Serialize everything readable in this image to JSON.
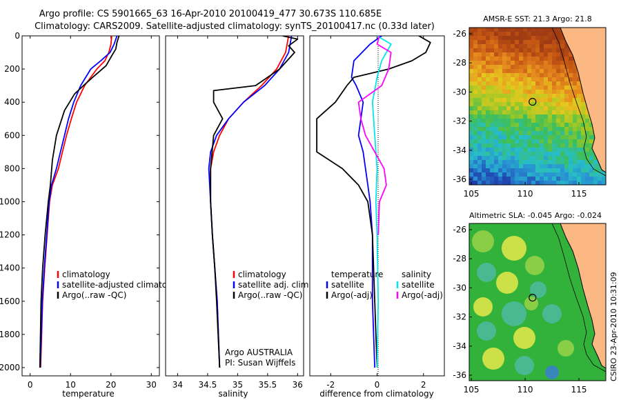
{
  "header": {
    "title_line1": "Argo profile: CS 5901665_63 16-Apr-2010 20100419_477 30.673S 110.685E",
    "title_line2": "Climatology: CARS2009. Satellite-adjusted climatology: synTS_20100417.nc (0.33d later)"
  },
  "colors": {
    "climatology": "#ff0000",
    "satellite": "#0000ff",
    "argo": "#000000",
    "salinity_satellite": "#00e5ee",
    "salinity_argo": "#ff00ff"
  },
  "chart_data": [
    {
      "type": "line",
      "xlabel": "temperature",
      "ylabel": "",
      "xlim": [
        -2,
        32
      ],
      "ylim": [
        2050,
        0
      ],
      "xticks": [
        0,
        10,
        20,
        30
      ],
      "yticks": [
        0,
        200,
        400,
        600,
        800,
        1000,
        1200,
        1400,
        1600,
        1800,
        2000
      ],
      "legend": {
        "placement": "lower-left",
        "entries": [
          "climatology",
          "satellite-adjusted climatology",
          "Argo(..raw -QC)"
        ]
      },
      "series": [
        {
          "name": "climatology",
          "color": "#ff0000",
          "x": [
            20.2,
            20.0,
            19.5,
            18.5,
            16.5,
            13.5,
            11.5,
            10.2,
            9.0,
            8.0,
            7.0,
            5.5,
            4.8,
            4.2,
            3.6,
            3.1,
            2.6
          ],
          "y": [
            0,
            50,
            100,
            150,
            200,
            300,
            400,
            500,
            600,
            700,
            800,
            900,
            1000,
            1200,
            1400,
            1600,
            2000
          ]
        },
        {
          "name": "satellite-adjusted climatology",
          "color": "#0000ff",
          "x": [
            21.5,
            20.8,
            19.8,
            17.5,
            15.0,
            12.5,
            10.8,
            9.5,
            8.5,
            7.5,
            6.5,
            5.3,
            4.7,
            4.1,
            3.5,
            3.0,
            2.5
          ],
          "y": [
            0,
            50,
            100,
            150,
            200,
            300,
            400,
            500,
            600,
            700,
            800,
            900,
            1000,
            1200,
            1400,
            1600,
            2000
          ]
        },
        {
          "name": "Argo(..raw -QC)",
          "color": "#000000",
          "x": [
            22.0,
            21.5,
            21.2,
            20.2,
            18.8,
            15.5,
            13.2,
            11.0,
            8.5,
            6.5,
            5.5,
            5.0,
            4.5,
            3.7,
            3.1,
            2.7,
            2.4
          ],
          "y": [
            0,
            40,
            80,
            120,
            180,
            250,
            300,
            350,
            450,
            600,
            750,
            900,
            1000,
            1200,
            1400,
            1600,
            2000
          ]
        }
      ]
    },
    {
      "type": "line",
      "xlabel": "salinity",
      "xlim": [
        33.8,
        36.1
      ],
      "ylim": [
        2050,
        0
      ],
      "xticks": [
        34,
        34.5,
        35,
        35.5,
        36
      ],
      "legend": {
        "placement": "lower-right",
        "entries": [
          "climatology",
          "satellite adj. clim.",
          "Argo(..raw -QC)"
        ]
      },
      "annotation_line1": "Argo AUSTRALIA",
      "annotation_line2": "PI: Susan Wijffels",
      "series": [
        {
          "name": "climatology",
          "color": "#ff0000",
          "x": [
            35.85,
            35.8,
            35.65,
            35.4,
            35.1,
            34.85,
            34.7,
            34.6,
            34.55,
            34.55,
            34.58,
            34.62,
            34.66,
            34.7
          ],
          "y": [
            0,
            100,
            200,
            300,
            400,
            500,
            600,
            700,
            800,
            1000,
            1200,
            1400,
            1600,
            2000
          ]
        },
        {
          "name": "satellite adj. clim.",
          "color": "#0000ff",
          "x": [
            35.9,
            35.85,
            35.7,
            35.45,
            35.1,
            34.85,
            34.65,
            34.55,
            34.52,
            34.55,
            34.58,
            34.62,
            34.66,
            34.7
          ],
          "y": [
            0,
            100,
            200,
            300,
            400,
            500,
            600,
            700,
            800,
            1000,
            1200,
            1400,
            1600,
            2000
          ]
        },
        {
          "name": "Argo(..raw -QC)",
          "color": "#000000",
          "x": [
            35.75,
            36.0,
            35.85,
            35.95,
            35.7,
            35.3,
            34.6,
            34.6,
            34.75,
            34.6,
            34.55,
            34.55,
            34.55,
            34.58,
            34.62,
            34.65,
            34.7
          ],
          "y": [
            0,
            20,
            60,
            100,
            200,
            300,
            330,
            400,
            500,
            600,
            800,
            900,
            1000,
            1200,
            1400,
            1600,
            2000
          ]
        }
      ]
    },
    {
      "type": "line",
      "xlabel": "difference from climatology",
      "xlim": [
        -2.9,
        2.9
      ],
      "ylim": [
        2050,
        0
      ],
      "xticks": [
        -2,
        0,
        2
      ],
      "legend": {
        "placement": "lower",
        "left_title": "temperature",
        "right_title": "salinity",
        "entries": [
          "satellite",
          "Argo(-adj)",
          "satellite",
          "Argo(-adj)"
        ]
      },
      "series": [
        {
          "name": "satellite",
          "color": "#0000ff",
          "x": [
            0.2,
            -0.3,
            -1.0,
            -1.1,
            -0.9,
            -0.6,
            -0.7,
            -0.8,
            -0.6,
            -0.5,
            -0.4,
            -0.3,
            -0.2,
            -0.2,
            -0.1
          ],
          "y": [
            0,
            50,
            150,
            250,
            300,
            400,
            500,
            600,
            700,
            800,
            900,
            1000,
            1200,
            1600,
            2000
          ]
        },
        {
          "name": "Argo(-adj)",
          "color": "#000000",
          "x": [
            1.8,
            2.3,
            2.1,
            1.5,
            0.5,
            -1.0,
            -1.3,
            -1.8,
            -2.6,
            -2.6,
            -1.5,
            -0.8,
            -0.4,
            -0.2,
            -0.1,
            0.0
          ],
          "y": [
            0,
            40,
            100,
            150,
            200,
            250,
            300,
            400,
            500,
            700,
            800,
            900,
            1000,
            1200,
            1600,
            2000
          ]
        },
        {
          "name": "satellite",
          "color": "#00e5ee",
          "x": [
            0.0,
            0.6,
            0.2,
            0.0,
            -0.2,
            -0.1,
            0.0,
            -0.05,
            0.0,
            0.05,
            0.0
          ],
          "y": [
            0,
            50,
            150,
            250,
            400,
            600,
            800,
            1000,
            1200,
            1600,
            2000
          ]
        },
        {
          "name": "Argo(-adj)",
          "color": "#ff00ff",
          "x": [
            0.1,
            0.0,
            0.6,
            0.5,
            0.2,
            -0.8,
            -0.7,
            -0.5,
            0.3,
            0.4,
            0.1,
            0.05
          ],
          "y": [
            0,
            50,
            100,
            200,
            300,
            400,
            500,
            600,
            800,
            900,
            1000,
            1200
          ]
        }
      ]
    }
  ],
  "maps": {
    "sst": {
      "title": "AMSR-E SST: 21.3 Argo: 21.8",
      "yticks": [
        "-26",
        "-28",
        "-30",
        "-32",
        "-34",
        "-36"
      ],
      "xticks": [
        "105",
        "110",
        "115"
      ],
      "argo_lon": 110.685,
      "argo_lat": -30.673
    },
    "sla": {
      "title": "Altimetric SLA: -0.045 Argo: -0.024",
      "yticks": [
        "-26",
        "-28",
        "-30",
        "-32",
        "-34",
        "-36"
      ],
      "xticks": [
        "105",
        "110",
        "115"
      ],
      "argo_lon": 110.685,
      "argo_lat": -30.673
    },
    "credit": "CSIRO 23-Apr-2010 10:31:09"
  }
}
